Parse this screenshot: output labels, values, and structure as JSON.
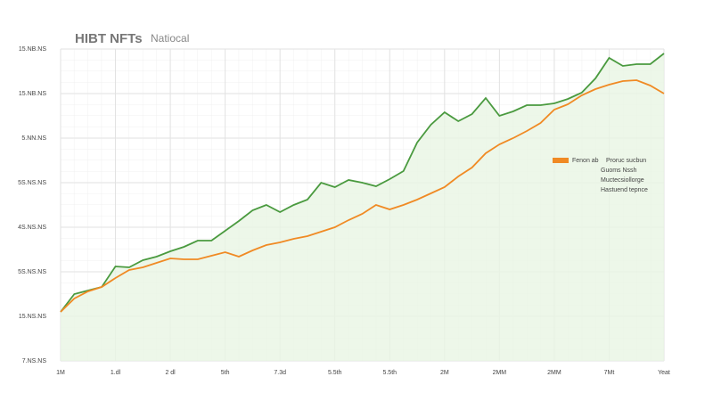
{
  "chart_data": {
    "type": "line",
    "title": "HIBT NFTs",
    "subtitle": "Natiocal",
    "x": [
      0,
      0.25,
      0.5,
      0.75,
      1,
      1.25,
      1.5,
      1.75,
      2,
      2.25,
      2.5,
      2.75,
      3,
      3.25,
      3.5,
      3.75,
      4,
      4.25,
      4.5,
      4.75,
      5,
      5.25,
      5.5,
      5.75,
      6,
      6.25,
      6.5,
      6.75,
      7,
      7.25,
      7.5,
      7.75,
      8,
      8.25,
      8.5,
      8.75,
      9,
      9.25,
      9.5,
      9.75,
      10,
      10.25,
      10.5,
      10.75,
      11
    ],
    "series": [
      {
        "color": "#4a9a3f",
        "fill": "#e8f5e4",
        "values": [
          1.1,
          1.5,
          1.58,
          1.66,
          2.12,
          2.1,
          2.26,
          2.34,
          2.46,
          2.56,
          2.7,
          2.7,
          2.92,
          3.14,
          3.38,
          3.5,
          3.34,
          3.5,
          3.62,
          4.0,
          3.9,
          4.06,
          4.0,
          3.92,
          4.08,
          4.26,
          4.9,
          5.3,
          5.58,
          5.38,
          5.54,
          5.9,
          5.5,
          5.6,
          5.74,
          5.74,
          5.78,
          5.88,
          6.02,
          6.34,
          6.8,
          6.62,
          6.66,
          6.66,
          6.9
        ]
      },
      {
        "name": "Fenon ab",
        "color": "#f08a24",
        "values": [
          1.1,
          1.4,
          1.56,
          1.66,
          1.86,
          2.04,
          2.1,
          2.2,
          2.3,
          2.28,
          2.28,
          2.36,
          2.44,
          2.34,
          2.48,
          2.6,
          2.66,
          2.74,
          2.8,
          2.9,
          3.0,
          3.16,
          3.3,
          3.5,
          3.4,
          3.5,
          3.62,
          3.76,
          3.9,
          4.14,
          4.34,
          4.66,
          4.86,
          5.0,
          5.16,
          5.34,
          5.64,
          5.76,
          5.96,
          6.1,
          6.2,
          6.28,
          6.3,
          6.18,
          6.0
        ]
      }
    ],
    "legend_notes": [
      "Proruc sucbun",
      "Guoms Nssh",
      "Muctecsiollorge",
      "Hastuend tepnce"
    ],
    "xlim": [
      0,
      11
    ],
    "xticks": [
      {
        "value": 0,
        "label": "1M"
      },
      {
        "value": 1,
        "label": "1.dl"
      },
      {
        "value": 2,
        "label": "2 dl"
      },
      {
        "value": 3,
        "label": "5th"
      },
      {
        "value": 4,
        "label": "7.3d"
      },
      {
        "value": 5,
        "label": "5.5th"
      },
      {
        "value": 6,
        "label": "5.5th"
      },
      {
        "value": 7,
        "label": "2M"
      },
      {
        "value": 8,
        "label": "2MM"
      },
      {
        "value": 9,
        "label": "2MM"
      },
      {
        "value": 10,
        "label": "7Mt"
      },
      {
        "value": 11,
        "label": "Yeat"
      }
    ],
    "ylim": [
      0,
      7
    ],
    "yticks": [
      {
        "value": 0,
        "label": "7.NS.NS"
      },
      {
        "value": 1,
        "label": "15.NS.NS"
      },
      {
        "value": 2,
        "label": "5S.NS.NS"
      },
      {
        "value": 3,
        "label": "4S.NS.NS"
      },
      {
        "value": 4,
        "label": "5S.NS.NS"
      },
      {
        "value": 5,
        "label": "5.NN.NS"
      },
      {
        "value": 6,
        "label": "15.NB.NS"
      },
      {
        "value": 7,
        "label": "15.NB.NS"
      }
    ],
    "grid": true
  }
}
